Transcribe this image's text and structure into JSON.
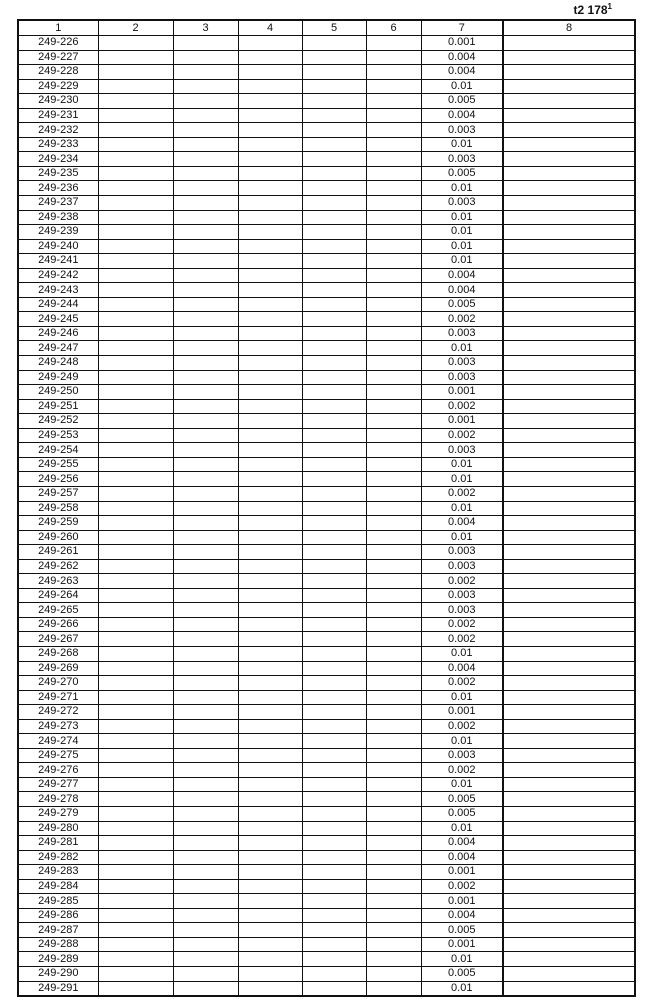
{
  "page_ref": {
    "text": "t2 178",
    "sup": "1"
  },
  "columns": [
    "1",
    "2",
    "3",
    "4",
    "5",
    "6",
    "7",
    "8"
  ],
  "rows": [
    [
      "249-226",
      "0.001"
    ],
    [
      "249-227",
      "0.004"
    ],
    [
      "249-228",
      "0.004"
    ],
    [
      "249-229",
      "0.01"
    ],
    [
      "249-230",
      "0.005"
    ],
    [
      "249-231",
      "0.004"
    ],
    [
      "249-232",
      "0.003"
    ],
    [
      "249-233",
      "0.01"
    ],
    [
      "249-234",
      "0.003"
    ],
    [
      "249-235",
      "0.005"
    ],
    [
      "249-236",
      "0.01"
    ],
    [
      "249-237",
      "0.003"
    ],
    [
      "249-238",
      "0.01"
    ],
    [
      "249-239",
      "0.01"
    ],
    [
      "249-240",
      "0.01"
    ],
    [
      "249-241",
      "0.01"
    ],
    [
      "249-242",
      "0.004"
    ],
    [
      "249-243",
      "0.004"
    ],
    [
      "249-244",
      "0.005"
    ],
    [
      "249-245",
      "0.002"
    ],
    [
      "249-246",
      "0.003"
    ],
    [
      "249-247",
      "0.01"
    ],
    [
      "249-248",
      "0.003"
    ],
    [
      "249-249",
      "0.003"
    ],
    [
      "249-250",
      "0.001"
    ],
    [
      "249-251",
      "0.002"
    ],
    [
      "249-252",
      "0.001"
    ],
    [
      "249-253",
      "0.002"
    ],
    [
      "249-254",
      "0.003"
    ],
    [
      "249-255",
      "0.01"
    ],
    [
      "249-256",
      "0.01"
    ],
    [
      "249-257",
      "0.002"
    ],
    [
      "249-258",
      "0.01"
    ],
    [
      "249-259",
      "0.004"
    ],
    [
      "249-260",
      "0.01"
    ],
    [
      "249-261",
      "0.003"
    ],
    [
      "249-262",
      "0.003"
    ],
    [
      "249-263",
      "0.002"
    ],
    [
      "249-264",
      "0.003"
    ],
    [
      "249-265",
      "0.003"
    ],
    [
      "249-266",
      "0.002"
    ],
    [
      "249-267",
      "0.002"
    ],
    [
      "249-268",
      "0.01"
    ],
    [
      "249-269",
      "0.004"
    ],
    [
      "249-270",
      "0.002"
    ],
    [
      "249-271",
      "0.01"
    ],
    [
      "249-272",
      "0.001"
    ],
    [
      "249-273",
      "0.002"
    ],
    [
      "249-274",
      "0.01"
    ],
    [
      "249-275",
      "0.003"
    ],
    [
      "249-276",
      "0.002"
    ],
    [
      "249-277",
      "0.01"
    ],
    [
      "249-278",
      "0.005"
    ],
    [
      "249-279",
      "0.005"
    ],
    [
      "249-280",
      "0.01"
    ],
    [
      "249-281",
      "0.004"
    ],
    [
      "249-282",
      "0.004"
    ],
    [
      "249-283",
      "0.001"
    ],
    [
      "249-284",
      "0.002"
    ],
    [
      "249-285",
      "0.001"
    ],
    [
      "249-286",
      "0.004"
    ],
    [
      "249-287",
      "0.005"
    ],
    [
      "249-288",
      "0.001"
    ],
    [
      "249-289",
      "0.01"
    ],
    [
      "249-290",
      "0.005"
    ],
    [
      "249-291",
      "0.01"
    ]
  ]
}
